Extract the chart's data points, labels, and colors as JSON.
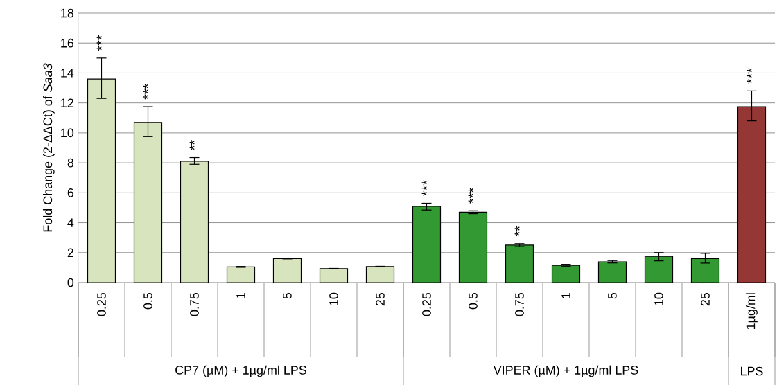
{
  "chart_data": {
    "type": "bar",
    "ylabel": "Fold Change (2-ΔΔCt) of *Saa3*",
    "categories": [
      "0.25",
      "0.5",
      "0.75",
      "1",
      "5",
      "10",
      "25",
      "0.25",
      "0.5",
      "0.75",
      "1",
      "5",
      "10",
      "25",
      "1µg/ml"
    ],
    "values": [
      13.6,
      10.7,
      8.1,
      1.05,
      1.6,
      0.93,
      1.07,
      5.1,
      4.7,
      2.5,
      1.15,
      1.38,
      1.75,
      1.6,
      11.75
    ],
    "errors": [
      [
        12.3,
        15.0
      ],
      [
        9.75,
        11.75
      ],
      [
        7.9,
        8.35
      ],
      0.03,
      0.02,
      0.02,
      0.02,
      [
        4.85,
        5.3
      ],
      [
        4.6,
        4.8
      ],
      [
        2.4,
        2.6
      ],
      [
        1.08,
        1.22
      ],
      [
        1.31,
        1.47
      ],
      [
        1.45,
        2.0
      ],
      [
        1.3,
        1.95
      ],
      [
        10.8,
        12.8
      ]
    ],
    "colors": [
      "#d7e4bd",
      "#d7e4bd",
      "#d7e4bd",
      "#d7e4bd",
      "#d7e4bd",
      "#d7e4bd",
      "#d7e4bd",
      "#339933",
      "#339933",
      "#339933",
      "#339933",
      "#339933",
      "#339933",
      "#339933",
      "#953735"
    ],
    "value_labels": [
      "***",
      "***",
      "**",
      null,
      null,
      null,
      null,
      "***",
      "***",
      "**",
      null,
      null,
      null,
      null,
      "***"
    ],
    "annotations": [
      "CP7 (µM) + 1µg/ml LPS",
      "VIPER (µM) + 1µg/ml LPS",
      "LPS"
    ],
    "ylim": [
      0,
      18
    ],
    "yticks": [
      0,
      2,
      4,
      6,
      8,
      10,
      12,
      14,
      16,
      18
    ],
    "grid": "y"
  }
}
